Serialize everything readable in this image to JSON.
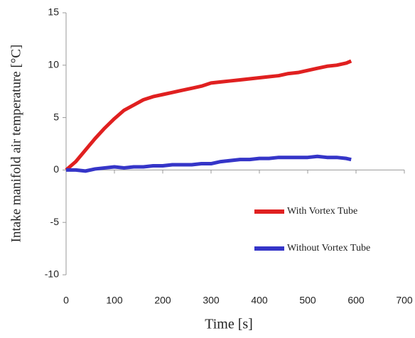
{
  "chart_data": {
    "type": "line",
    "x_label": "Time [s]",
    "y_label": "Intake manifold air temperature [°C]",
    "x": [
      0,
      20,
      40,
      60,
      80,
      100,
      120,
      140,
      160,
      180,
      200,
      220,
      240,
      260,
      280,
      300,
      320,
      340,
      360,
      380,
      400,
      420,
      440,
      460,
      480,
      500,
      520,
      540,
      560,
      580,
      590
    ],
    "series": [
      {
        "name": "With Vortex Tube",
        "color": "#e02020",
        "values": [
          0,
          0.8,
          1.9,
          3.0,
          4.0,
          4.9,
          5.7,
          6.2,
          6.7,
          7.0,
          7.2,
          7.4,
          7.6,
          7.8,
          8.0,
          8.3,
          8.4,
          8.5,
          8.6,
          8.7,
          8.8,
          8.9,
          9.0,
          9.2,
          9.3,
          9.5,
          9.7,
          9.9,
          10.0,
          10.2,
          10.4
        ]
      },
      {
        "name": "Without Vortex Tube",
        "color": "#3535c8",
        "values": [
          0,
          0,
          -0.1,
          0.1,
          0.2,
          0.3,
          0.2,
          0.3,
          0.3,
          0.4,
          0.4,
          0.5,
          0.5,
          0.5,
          0.6,
          0.6,
          0.8,
          0.9,
          1.0,
          1.0,
          1.1,
          1.1,
          1.2,
          1.2,
          1.2,
          1.2,
          1.3,
          1.2,
          1.2,
          1.1,
          1.0
        ]
      }
    ],
    "xlim": [
      0,
      700
    ],
    "xticks": [
      0,
      100,
      200,
      300,
      400,
      500,
      600,
      700
    ],
    "ylim": [
      -10,
      15
    ],
    "yticks": [
      -10,
      -5,
      0,
      5,
      10,
      15
    ],
    "legend": "lower right",
    "grid": false
  }
}
